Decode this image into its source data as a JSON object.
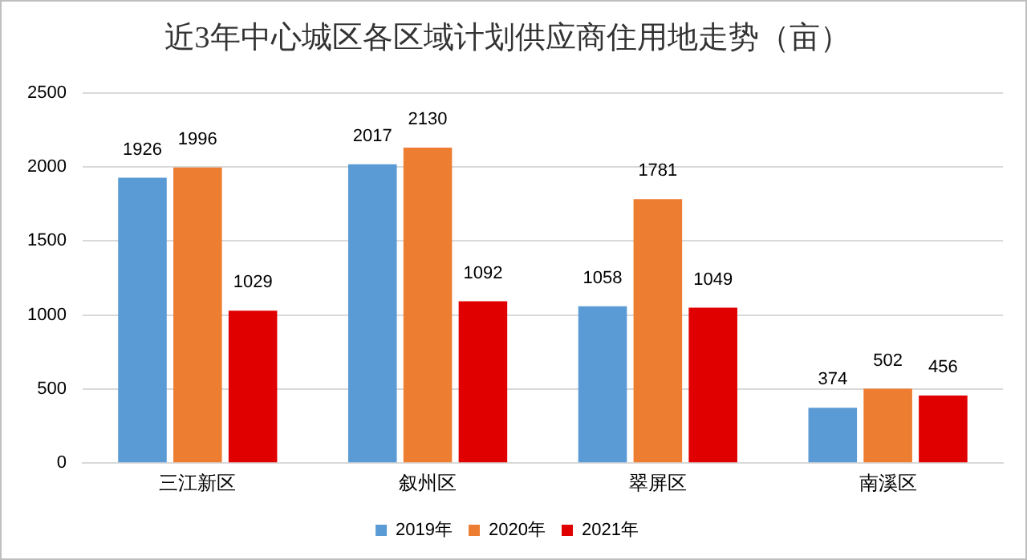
{
  "chart_data": {
    "type": "bar",
    "title": "近3年中心城区各区域计划供应商住用地走势（亩）",
    "categories": [
      "三江新区",
      "叙州区",
      "翠屏区",
      "南溪区"
    ],
    "series": [
      {
        "name": "2019年",
        "color": "#5b9bd5",
        "values": [
          1926,
          2017,
          1058,
          374
        ]
      },
      {
        "name": "2020年",
        "color": "#ed7d31",
        "values": [
          1996,
          2130,
          1781,
          502
        ]
      },
      {
        "name": "2021年",
        "color": "#e00000",
        "values": [
          1029,
          1092,
          1049,
          456
        ]
      }
    ],
    "ylim": [
      0,
      2500
    ],
    "yticks": [
      0,
      500,
      1000,
      1500,
      2000,
      2500
    ],
    "grid": "y",
    "legend": "bottom",
    "data_labels": true
  }
}
